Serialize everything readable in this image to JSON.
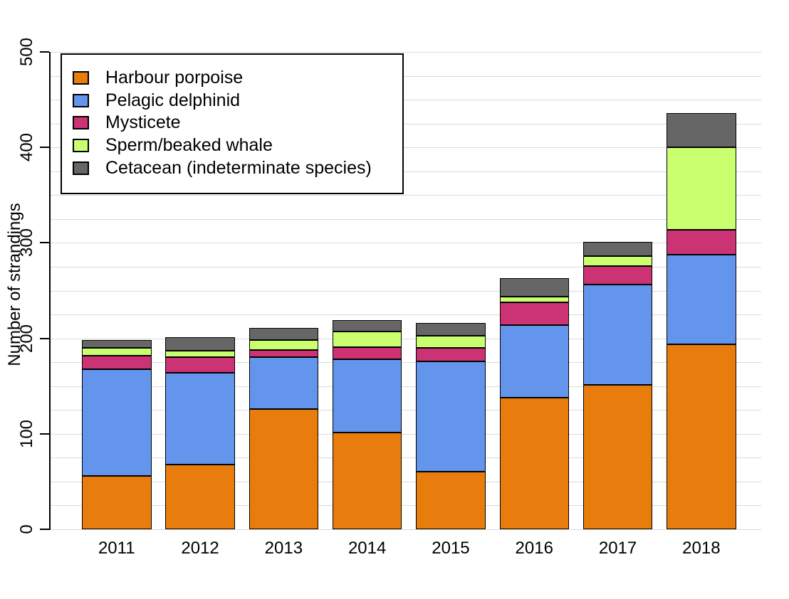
{
  "chart_data": {
    "type": "bar",
    "stacked": true,
    "title": "",
    "xlabel": "",
    "ylabel": "Number of strandings",
    "categories": [
      "2011",
      "2012",
      "2013",
      "2014",
      "2015",
      "2016",
      "2017",
      "2018"
    ],
    "series": [
      {
        "name": "Harbour porpoise",
        "color": "#E87D0D",
        "values": [
          56,
          68,
          126,
          101,
          60,
          138,
          151,
          194
        ]
      },
      {
        "name": "Pelagic delphinid",
        "color": "#6495ED",
        "values": [
          112,
          96,
          54,
          77,
          116,
          76,
          105,
          94
        ]
      },
      {
        "name": "Mysticete",
        "color": "#CB3374",
        "values": [
          14,
          16,
          8,
          13,
          14,
          24,
          20,
          26
        ]
      },
      {
        "name": "Sperm/beaked whale",
        "color": "#CAFF70",
        "values": [
          8,
          7,
          10,
          16,
          13,
          6,
          10,
          86
        ]
      },
      {
        "name": "Cetacean (indeterminate species)",
        "color": "#666666",
        "values": [
          8,
          14,
          13,
          12,
          13,
          19,
          15,
          36
        ]
      }
    ],
    "ylim": [
      0,
      500
    ],
    "yticks": [
      0,
      100,
      200,
      300,
      400,
      500
    ],
    "grid_step": 25,
    "grid": true,
    "legend_position": "top-left",
    "colors": {
      "gridline": "#DADADA",
      "axis": "#000000",
      "background": "#FFFFFF",
      "text": "#000000"
    }
  }
}
